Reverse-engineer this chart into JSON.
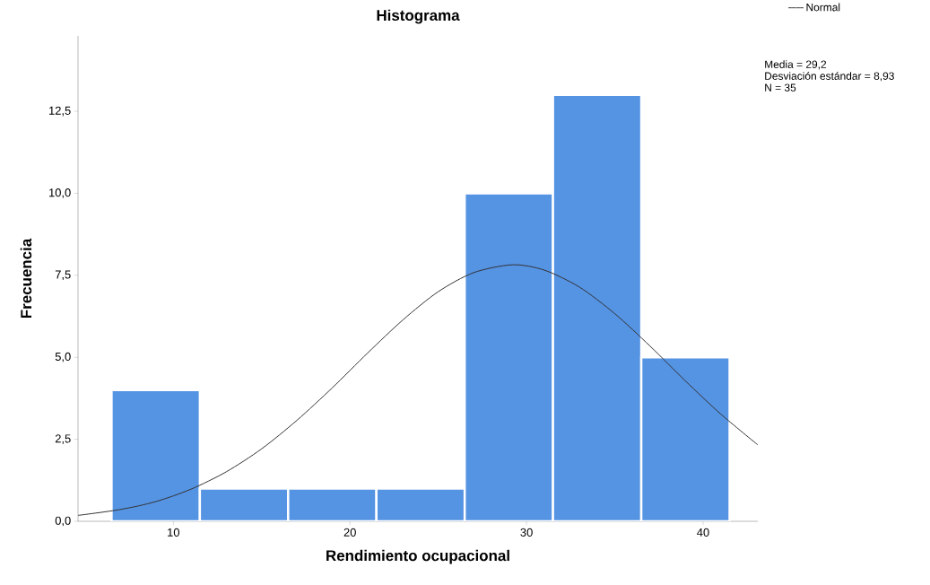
{
  "chart_data": {
    "type": "histogram",
    "title": "Histograma",
    "xlabel": "Rendimiento ocupacional",
    "ylabel": "Frecuencia",
    "bins": [
      6.5,
      11.5,
      16.5,
      21.5,
      26.5,
      31.5,
      36.5,
      41.5
    ],
    "values": [
      4,
      1,
      1,
      1,
      10,
      13,
      5
    ],
    "color": "#5593e3",
    "series": [
      {
        "type": "line",
        "name": "Normal",
        "color": "#333333",
        "x": [
          4.6,
          7,
          9,
          11,
          13,
          15,
          17,
          19,
          21,
          23,
          25,
          27,
          29.2,
          31,
          33,
          35,
          37,
          39,
          41,
          43.1
        ],
        "values": [
          0.18,
          0.36,
          0.6,
          0.98,
          1.51,
          2.21,
          3.08,
          4.07,
          5.13,
          6.14,
          7.0,
          7.58,
          7.82,
          7.66,
          7.14,
          6.33,
          5.34,
          4.28,
          3.27,
          2.33
        ]
      }
    ],
    "xlim": [
      4.6,
      43.1
    ],
    "ylim": [
      0,
      14.8
    ],
    "xticks": [
      10,
      20,
      30,
      40
    ],
    "yticks": [
      {
        "value": 0,
        "label": "0,0"
      },
      {
        "value": 2.5,
        "label": "2,5"
      },
      {
        "value": 5,
        "label": "5,0"
      },
      {
        "value": 7.5,
        "label": "7,5"
      },
      {
        "value": 10,
        "label": "10,0"
      },
      {
        "value": 12.5,
        "label": "12,5"
      }
    ],
    "legend": "top right",
    "annotations": [
      "Media = 29,2",
      "Desviación estándar = 8,93",
      "N = 35"
    ]
  }
}
